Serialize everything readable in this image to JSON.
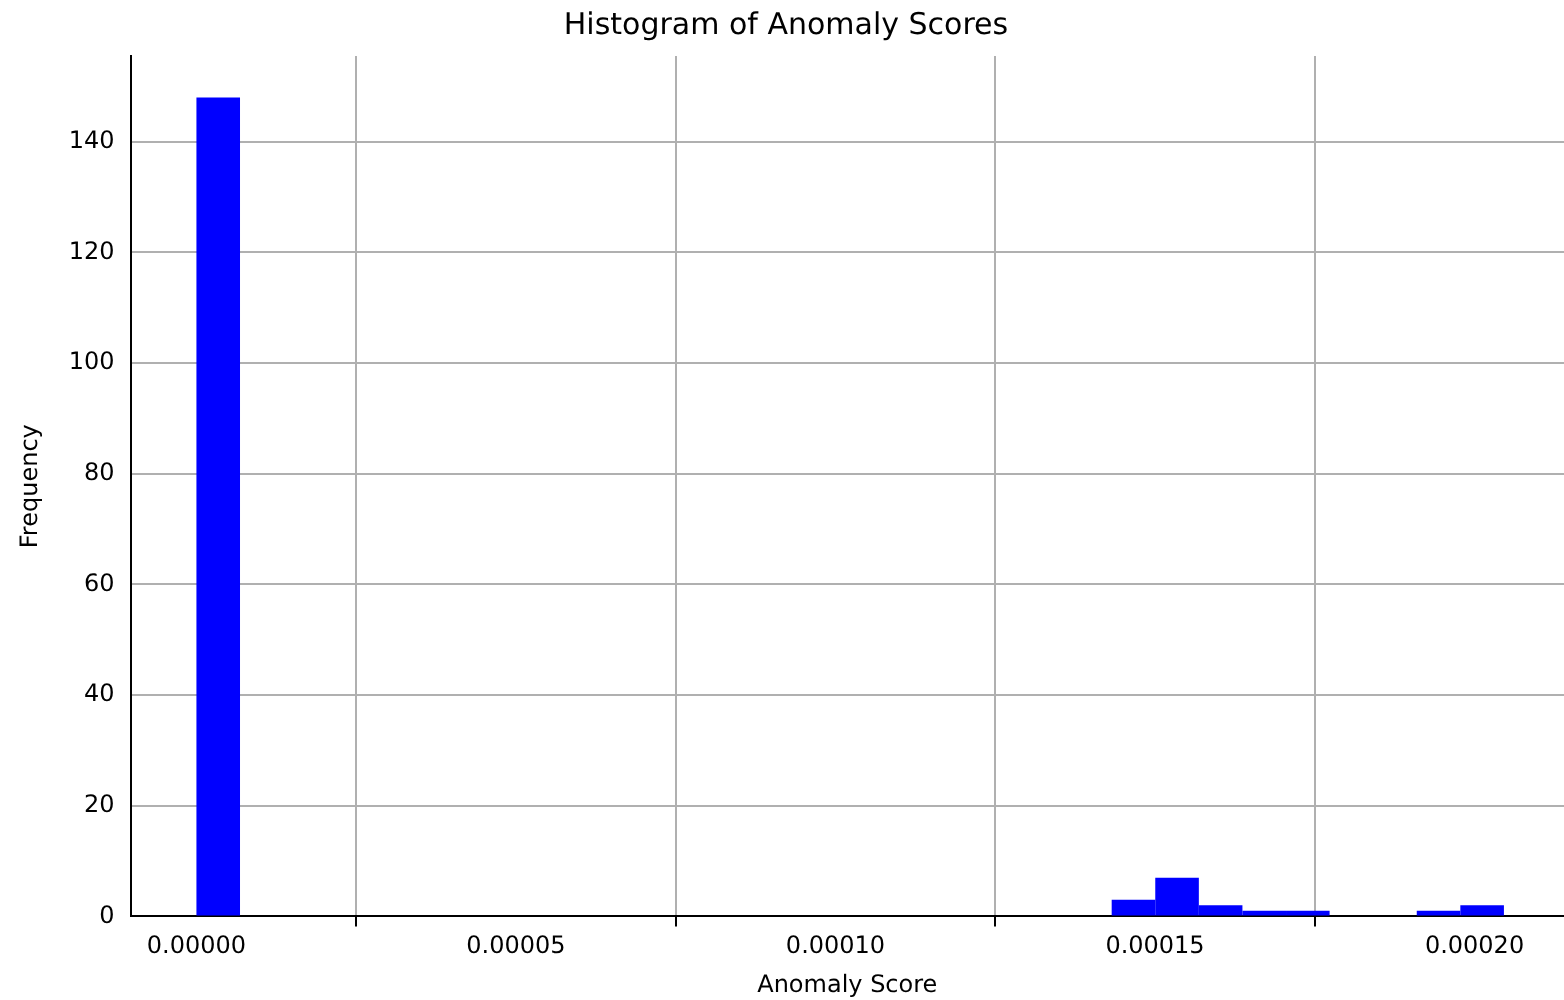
{
  "chart_data": {
    "type": "histogram",
    "title": "Histogram of Anomaly Scores",
    "xlabel": "Anomaly Score",
    "ylabel": "Frequency",
    "bins": [
      0,
      6.82e-06,
      1.364e-05,
      2.046e-05,
      2.728e-05,
      3.41e-05,
      4.092e-05,
      4.774e-05,
      5.456e-05,
      6.138e-05,
      6.82e-05,
      7.502e-05,
      8.184e-05,
      8.866e-05,
      9.548e-05,
      0.0001023,
      0.00010912,
      0.00011594,
      0.00012276,
      0.00012958,
      0.0001364,
      0.00014322,
      0.00015004,
      0.00015686,
      0.00016368,
      0.0001705,
      0.00017732,
      0.00018414,
      0.00019096,
      0.00019778,
      0.0002046
    ],
    "values": [
      148,
      0,
      0,
      0,
      0,
      0,
      0,
      0,
      0,
      0,
      0,
      0,
      0,
      0,
      0,
      0,
      0,
      0,
      0,
      0,
      0,
      3,
      7,
      2,
      1,
      1,
      0,
      0,
      1,
      2
    ],
    "color": "#0000ff",
    "xlim": [
      -1.03e-05,
      0.000214
    ],
    "xticks": [
      {
        "value": 0,
        "label": "0.00000"
      },
      {
        "value": 5e-05,
        "label": "0.00005"
      },
      {
        "value": 0.0001,
        "label": "0.00010"
      },
      {
        "value": 0.00015,
        "label": "0.00015"
      },
      {
        "value": 0.0002,
        "label": "0.00020"
      }
    ],
    "ylim": [
      0,
      155.5
    ],
    "yticks": [
      0,
      20,
      40,
      60,
      80,
      100,
      120,
      140
    ],
    "grid": true
  }
}
